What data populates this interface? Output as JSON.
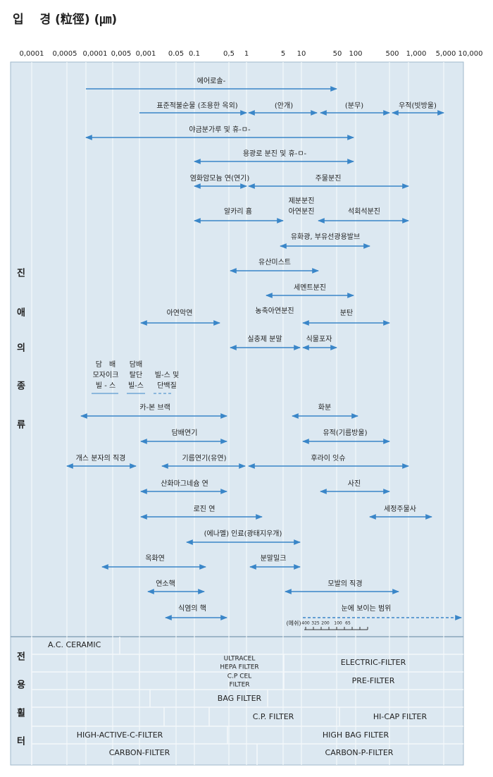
{
  "title": "입　 경 (粒徑) (㎛)",
  "axis_labels": [
    "0,0001",
    "0,0005",
    "0,0001",
    "0,005",
    "0,001",
    "0.05",
    "0.1",
    "0,5",
    "1",
    "5",
    "10",
    "50",
    "100",
    "500",
    "1,000",
    "5,000",
    "10,000"
  ],
  "dust_section": {
    "label": [
      "진",
      "애",
      "의",
      "종",
      "류"
    ],
    "items": [
      "에어로솔-",
      "표준적불순물 (조용한 옥외)",
      "(안개)",
      "(분무)",
      "우적(빗방울)",
      "야금분가루 및 휴-ㅁ-",
      "용광로 분진 및 휴-ㅁ-",
      "염화암모늄 연(연기)",
      "주물분진",
      "알카리 흄",
      "제분분진",
      "아연분진",
      "석회석분진",
      "유화광, 부유선광용발브",
      "유산미스트",
      "세멘트분진",
      "아연악연",
      "농축아연분진",
      "분탄",
      "실충제 분말",
      "식물포자",
      "담　배",
      "모자이크",
      "빌 - 스",
      "담배",
      "탈단",
      "빌-스",
      "빌-스 및",
      "단백질",
      "카-본 브랙",
      "화분",
      "담배연기",
      "유적(기름방울)",
      "개스 분자의 직경",
      "기름연기(유연)",
      "후라이 잇슈",
      "산화마그네슘 연",
      "사진",
      "로진 연",
      "세정주물사",
      "(에나멜) 인료(광태지우개)",
      "옥화연",
      "분말밀크",
      "연소핵",
      "모발의 직경",
      "식염의 핵",
      "눈에 보이는 범위"
    ]
  },
  "mesh": {
    "label": "(메쉬)",
    "ticks": [
      "400",
      "325",
      "200",
      "100",
      "65"
    ]
  },
  "filter_section": {
    "label": [
      "전",
      "용",
      "휠",
      "터"
    ],
    "filters": [
      "A.C. CERAMIC",
      "ULTRACEL",
      "HEPA FILTER",
      "ELECTRIC-FILTER",
      "C.P CEL",
      "FILTER",
      "PRE-FILTER",
      "BAG FILTER",
      "C.P. FILTER",
      "HI-CAP FILTER",
      "HIGH-ACTIVE-C-FILTER",
      "HIGH BAG FILTER",
      "CARBON-FILTER",
      "CARBON-P-FILTER"
    ]
  }
}
